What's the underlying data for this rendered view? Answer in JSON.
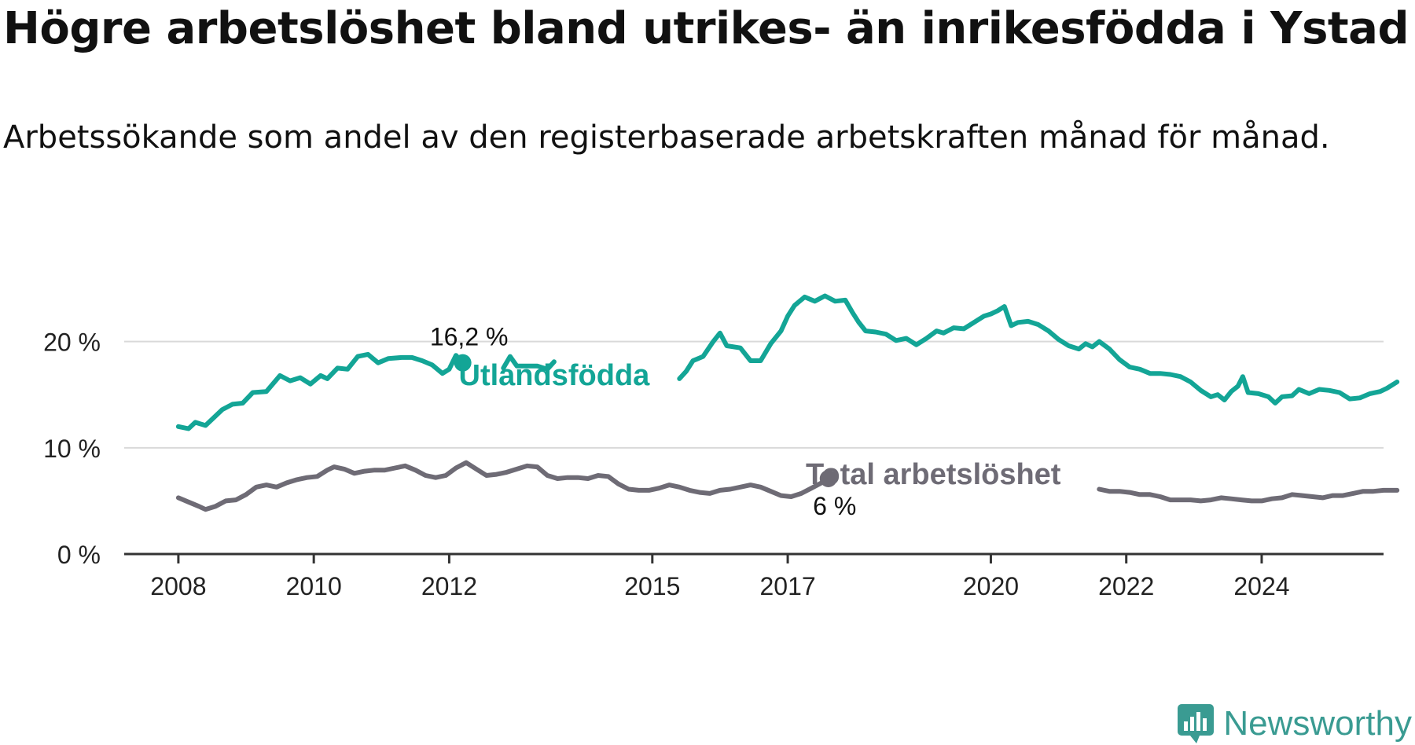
{
  "title": "Högre arbetslöshet bland utrikes- än inrikesfödda i Ystad",
  "subtitle": "Arbetssökande som andel av den registerbaserade arbetskraften månad för månad.",
  "brand": "Newsworthy",
  "colors": {
    "foreign": "#13a596",
    "total": "#6e6b75",
    "axis": "#333333",
    "grid": "#d9d9d9"
  },
  "chart_data": {
    "type": "line",
    "y_ticks": [
      {
        "value": 0,
        "label": "0 %"
      },
      {
        "value": 10,
        "label": "10 %"
      },
      {
        "value": 20,
        "label": "20 %"
      }
    ],
    "x_ticks": [
      {
        "value": 2008.0,
        "label": "2008"
      },
      {
        "value": 2010.0,
        "label": "2010"
      },
      {
        "value": 2012.0,
        "label": "2012"
      },
      {
        "value": 2015.0,
        "label": "2015"
      },
      {
        "value": 2017.0,
        "label": "2017"
      },
      {
        "value": 2020.0,
        "label": "2020"
      },
      {
        "value": 2022.0,
        "label": "2022"
      },
      {
        "value": 2024.0,
        "label": "2024"
      }
    ],
    "xlim": [
      2007.2,
      2025.8
    ],
    "ylim": [
      0,
      27
    ],
    "grid": true,
    "series": [
      {
        "name": "Utlandsfödda",
        "key": "foreign",
        "end_label": "16,2 %",
        "points": [
          [
            2008.0,
            12.0
          ],
          [
            2008.15,
            11.8
          ],
          [
            2008.25,
            12.4
          ],
          [
            2008.4,
            12.1
          ],
          [
            2008.5,
            12.7
          ],
          [
            2008.65,
            13.6
          ],
          [
            2008.8,
            14.1
          ],
          [
            2008.95,
            14.2
          ],
          [
            2009.1,
            15.2
          ],
          [
            2009.3,
            15.3
          ],
          [
            2009.5,
            16.8
          ],
          [
            2009.65,
            16.3
          ],
          [
            2009.8,
            16.6
          ],
          [
            2009.95,
            16.0
          ],
          [
            2010.1,
            16.8
          ],
          [
            2010.2,
            16.5
          ],
          [
            2010.35,
            17.5
          ],
          [
            2010.5,
            17.4
          ],
          [
            2010.65,
            18.6
          ],
          [
            2010.8,
            18.8
          ],
          [
            2010.95,
            18.0
          ],
          [
            2011.1,
            18.4
          ],
          [
            2011.3,
            18.5
          ],
          [
            2011.45,
            18.5
          ],
          [
            2011.6,
            18.2
          ],
          [
            2011.75,
            17.8
          ],
          [
            2011.9,
            17.0
          ],
          [
            2012.0,
            17.4
          ],
          [
            2012.1,
            18.7
          ],
          [
            2012.2,
            18.0
          ]
        ]
      },
      {
        "name": "",
        "key": "foreign",
        "points": [
          [
            2012.8,
            17.5
          ],
          [
            2012.9,
            18.6
          ],
          [
            2013.0,
            17.7
          ],
          [
            2013.15,
            17.7
          ],
          [
            2013.3,
            17.7
          ],
          [
            2013.45,
            17.4
          ],
          [
            2013.55,
            18.1
          ]
        ]
      },
      {
        "name": "",
        "key": "foreign",
        "points": [
          [
            2015.4,
            16.5
          ],
          [
            2015.5,
            17.2
          ],
          [
            2015.6,
            18.2
          ],
          [
            2015.75,
            18.6
          ],
          [
            2015.9,
            20.0
          ],
          [
            2016.0,
            20.8
          ],
          [
            2016.1,
            19.6
          ],
          [
            2016.3,
            19.4
          ],
          [
            2016.45,
            18.2
          ],
          [
            2016.6,
            18.2
          ],
          [
            2016.75,
            19.8
          ],
          [
            2016.9,
            21.0
          ],
          [
            2017.0,
            22.4
          ],
          [
            2017.1,
            23.4
          ],
          [
            2017.25,
            24.2
          ],
          [
            2017.4,
            23.8
          ],
          [
            2017.55,
            24.3
          ],
          [
            2017.7,
            23.8
          ],
          [
            2017.85,
            23.9
          ],
          [
            2017.95,
            22.8
          ],
          [
            2018.05,
            21.8
          ],
          [
            2018.15,
            21.0
          ],
          [
            2018.3,
            20.9
          ],
          [
            2018.45,
            20.7
          ],
          [
            2018.6,
            20.1
          ],
          [
            2018.75,
            20.3
          ],
          [
            2018.9,
            19.7
          ],
          [
            2019.05,
            20.3
          ],
          [
            2019.2,
            21.0
          ],
          [
            2019.3,
            20.8
          ],
          [
            2019.45,
            21.3
          ],
          [
            2019.6,
            21.2
          ],
          [
            2019.75,
            21.8
          ],
          [
            2019.9,
            22.4
          ],
          [
            2020.0,
            22.6
          ],
          [
            2020.1,
            22.9
          ],
          [
            2020.2,
            23.3
          ],
          [
            2020.3,
            21.5
          ],
          [
            2020.4,
            21.8
          ],
          [
            2020.55,
            21.9
          ],
          [
            2020.7,
            21.6
          ],
          [
            2020.85,
            21.0
          ],
          [
            2021.0,
            20.2
          ],
          [
            2021.15,
            19.6
          ],
          [
            2021.3,
            19.3
          ],
          [
            2021.4,
            19.8
          ],
          [
            2021.5,
            19.5
          ],
          [
            2021.6,
            20.0
          ],
          [
            2021.75,
            19.3
          ],
          [
            2021.9,
            18.3
          ],
          [
            2022.05,
            17.6
          ],
          [
            2022.2,
            17.4
          ],
          [
            2022.35,
            17.0
          ],
          [
            2022.5,
            17.0
          ],
          [
            2022.65,
            16.9
          ],
          [
            2022.8,
            16.7
          ],
          [
            2022.95,
            16.2
          ],
          [
            2023.1,
            15.4
          ],
          [
            2023.25,
            14.8
          ],
          [
            2023.35,
            15.0
          ],
          [
            2023.45,
            14.5
          ],
          [
            2023.55,
            15.3
          ],
          [
            2023.65,
            15.8
          ],
          [
            2023.72,
            16.7
          ],
          [
            2023.8,
            15.2
          ],
          [
            2023.95,
            15.1
          ],
          [
            2024.1,
            14.8
          ],
          [
            2024.2,
            14.2
          ],
          [
            2024.3,
            14.8
          ],
          [
            2024.45,
            14.9
          ],
          [
            2024.55,
            15.5
          ],
          [
            2024.7,
            15.1
          ],
          [
            2024.85,
            15.5
          ],
          [
            2025.0,
            15.4
          ],
          [
            2025.15,
            15.2
          ],
          [
            2025.3,
            14.6
          ],
          [
            2025.45,
            14.7
          ],
          [
            2025.6,
            15.1
          ],
          [
            2025.75,
            15.3
          ],
          [
            2025.85,
            15.6
          ],
          [
            2026.0,
            16.2
          ]
        ]
      },
      {
        "name": "Total arbetslöshet",
        "key": "total",
        "end_label": "6 %",
        "points": [
          [
            2008.0,
            5.3
          ],
          [
            2008.15,
            4.9
          ],
          [
            2008.3,
            4.5
          ],
          [
            2008.4,
            4.2
          ],
          [
            2008.55,
            4.5
          ],
          [
            2008.7,
            5.0
          ],
          [
            2008.85,
            5.1
          ],
          [
            2009.0,
            5.6
          ],
          [
            2009.15,
            6.3
          ],
          [
            2009.3,
            6.5
          ],
          [
            2009.45,
            6.3
          ],
          [
            2009.6,
            6.7
          ],
          [
            2009.75,
            7.0
          ],
          [
            2009.9,
            7.2
          ],
          [
            2010.05,
            7.3
          ],
          [
            2010.2,
            7.9
          ],
          [
            2010.3,
            8.2
          ],
          [
            2010.45,
            8.0
          ],
          [
            2010.6,
            7.6
          ],
          [
            2010.75,
            7.8
          ],
          [
            2010.9,
            7.9
          ],
          [
            2011.05,
            7.9
          ],
          [
            2011.2,
            8.1
          ],
          [
            2011.35,
            8.3
          ],
          [
            2011.5,
            7.9
          ],
          [
            2011.65,
            7.4
          ],
          [
            2011.8,
            7.2
          ],
          [
            2011.95,
            7.4
          ],
          [
            2012.1,
            8.1
          ],
          [
            2012.25,
            8.6
          ],
          [
            2012.4,
            8.0
          ],
          [
            2012.55,
            7.4
          ],
          [
            2012.7,
            7.5
          ],
          [
            2012.85,
            7.7
          ],
          [
            2013.0,
            8.0
          ],
          [
            2013.15,
            8.3
          ],
          [
            2013.3,
            8.2
          ],
          [
            2013.45,
            7.4
          ],
          [
            2013.6,
            7.1
          ],
          [
            2013.75,
            7.2
          ],
          [
            2013.9,
            7.2
          ],
          [
            2014.05,
            7.1
          ],
          [
            2014.2,
            7.4
          ],
          [
            2014.35,
            7.3
          ],
          [
            2014.5,
            6.6
          ],
          [
            2014.65,
            6.1
          ],
          [
            2014.8,
            6.0
          ],
          [
            2014.95,
            6.0
          ],
          [
            2015.1,
            6.2
          ],
          [
            2015.25,
            6.5
          ],
          [
            2015.4,
            6.3
          ],
          [
            2015.55,
            6.0
          ],
          [
            2015.7,
            5.8
          ],
          [
            2015.85,
            5.7
          ],
          [
            2016.0,
            6.0
          ],
          [
            2016.15,
            6.1
          ],
          [
            2016.3,
            6.3
          ],
          [
            2016.45,
            6.5
          ],
          [
            2016.6,
            6.3
          ],
          [
            2016.75,
            5.9
          ],
          [
            2016.9,
            5.5
          ],
          [
            2017.05,
            5.4
          ],
          [
            2017.2,
            5.7
          ],
          [
            2017.35,
            6.2
          ],
          [
            2017.5,
            6.7
          ],
          [
            2017.6,
            7.1
          ]
        ]
      },
      {
        "name": "",
        "key": "total",
        "points": [
          [
            2021.6,
            6.1
          ],
          [
            2021.75,
            5.9
          ],
          [
            2021.9,
            5.9
          ],
          [
            2022.05,
            5.8
          ],
          [
            2022.2,
            5.6
          ],
          [
            2022.35,
            5.6
          ],
          [
            2022.5,
            5.4
          ],
          [
            2022.65,
            5.1
          ],
          [
            2022.8,
            5.1
          ],
          [
            2022.95,
            5.1
          ],
          [
            2023.1,
            5.0
          ],
          [
            2023.25,
            5.1
          ],
          [
            2023.4,
            5.3
          ],
          [
            2023.55,
            5.2
          ],
          [
            2023.7,
            5.1
          ],
          [
            2023.85,
            5.0
          ],
          [
            2024.0,
            5.0
          ],
          [
            2024.15,
            5.2
          ],
          [
            2024.3,
            5.3
          ],
          [
            2024.45,
            5.6
          ],
          [
            2024.6,
            5.5
          ],
          [
            2024.75,
            5.4
          ],
          [
            2024.9,
            5.3
          ],
          [
            2025.05,
            5.5
          ],
          [
            2025.2,
            5.5
          ],
          [
            2025.35,
            5.7
          ],
          [
            2025.5,
            5.9
          ],
          [
            2025.65,
            5.9
          ],
          [
            2025.8,
            6.0
          ],
          [
            2026.0,
            6.0
          ]
        ]
      }
    ],
    "labels": [
      {
        "text": "Utlandsfödda",
        "key": "foreign",
        "x": 2013.55,
        "y": 15.9
      },
      {
        "text": "Total arbetslöshet",
        "key": "total",
        "x": 2019.15,
        "y": 6.6
      }
    ]
  }
}
